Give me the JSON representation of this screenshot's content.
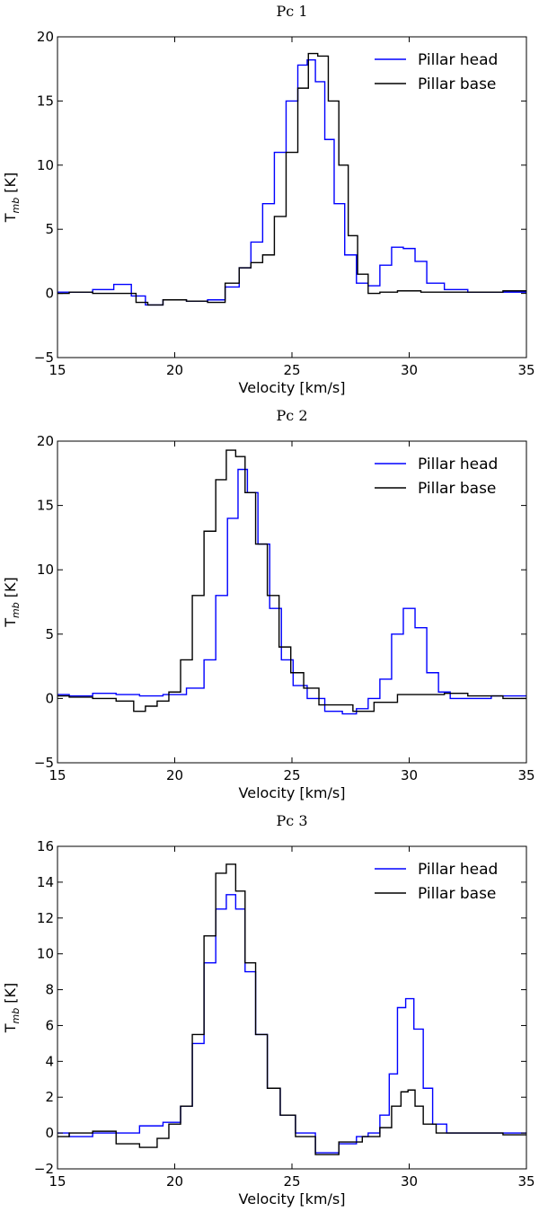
{
  "figure": {
    "background": "#ffffff",
    "colors": {
      "head": "#0000ff",
      "base": "#000000"
    }
  },
  "chart_data": [
    {
      "type": "line",
      "drawstyle": "steps",
      "title": "Pc 1",
      "xlabel": "Velocity [km/s]",
      "ylabel": "T",
      "ylabel_sub": "mb",
      "ylabel_unit": " [K]",
      "xlim": [
        15,
        35
      ],
      "ylim": [
        -5,
        20
      ],
      "xticks": [
        15,
        20,
        25,
        30,
        35
      ],
      "yticks": [
        -5,
        0,
        5,
        10,
        15,
        20
      ],
      "legend_position": "top-right",
      "series": [
        {
          "name": "Pillar head",
          "color": "#0000ff",
          "points": [
            [
              15,
              0.1
            ],
            [
              16,
              0.1
            ],
            [
              17,
              0.3
            ],
            [
              17.8,
              0.7
            ],
            [
              18.5,
              -0.2
            ],
            [
              19,
              -0.9
            ],
            [
              20,
              -0.5
            ],
            [
              21,
              -0.6
            ],
            [
              21.8,
              -0.5
            ],
            [
              22.5,
              0.5
            ],
            [
              23,
              2.0
            ],
            [
              23.5,
              4.0
            ],
            [
              24,
              7.0
            ],
            [
              24.5,
              11.0
            ],
            [
              25,
              15.0
            ],
            [
              25.5,
              17.8
            ],
            [
              25.8,
              18.2
            ],
            [
              26.2,
              16.5
            ],
            [
              26.6,
              12.0
            ],
            [
              27,
              7.0
            ],
            [
              27.5,
              3.0
            ],
            [
              28,
              0.8
            ],
            [
              28.5,
              0.6
            ],
            [
              29,
              2.2
            ],
            [
              29.5,
              3.6
            ],
            [
              30,
              3.5
            ],
            [
              30.5,
              2.5
            ],
            [
              31,
              0.8
            ],
            [
              32,
              0.3
            ],
            [
              33,
              0.1
            ],
            [
              35,
              0.1
            ]
          ]
        },
        {
          "name": "Pillar base",
          "color": "#000000",
          "points": [
            [
              15,
              0.0
            ],
            [
              16,
              0.1
            ],
            [
              17,
              0.0
            ],
            [
              18,
              0.0
            ],
            [
              18.7,
              -0.7
            ],
            [
              19,
              -0.9
            ],
            [
              20,
              -0.5
            ],
            [
              21,
              -0.6
            ],
            [
              21.8,
              -0.7
            ],
            [
              22.5,
              0.8
            ],
            [
              23,
              2.0
            ],
            [
              23.5,
              2.4
            ],
            [
              24,
              3.0
            ],
            [
              24.5,
              6.0
            ],
            [
              25,
              11.0
            ],
            [
              25.5,
              16.0
            ],
            [
              25.9,
              18.7
            ],
            [
              26.3,
              18.5
            ],
            [
              26.8,
              15.0
            ],
            [
              27.2,
              10.0
            ],
            [
              27.6,
              4.5
            ],
            [
              28,
              1.5
            ],
            [
              28.5,
              0.0
            ],
            [
              29,
              0.1
            ],
            [
              30,
              0.2
            ],
            [
              31,
              0.1
            ],
            [
              33,
              0.1
            ],
            [
              35,
              0.2
            ]
          ]
        }
      ]
    },
    {
      "type": "line",
      "drawstyle": "steps",
      "title": "Pc 2",
      "xlabel": "Velocity [km/s]",
      "ylabel": "T",
      "ylabel_sub": "mb",
      "ylabel_unit": " [K]",
      "xlim": [
        15,
        35
      ],
      "ylim": [
        -5,
        20
      ],
      "xticks": [
        15,
        20,
        25,
        30,
        35
      ],
      "yticks": [
        -5,
        0,
        5,
        10,
        15,
        20
      ],
      "legend_position": "top-right",
      "series": [
        {
          "name": "Pillar head",
          "color": "#0000ff",
          "points": [
            [
              15,
              0.3
            ],
            [
              16,
              0.2
            ],
            [
              17,
              0.4
            ],
            [
              18,
              0.3
            ],
            [
              19,
              0.2
            ],
            [
              20,
              0.3
            ],
            [
              21,
              0.8
            ],
            [
              21.5,
              3.0
            ],
            [
              22,
              8.0
            ],
            [
              22.5,
              14.0
            ],
            [
              22.9,
              17.8
            ],
            [
              23.3,
              16.0
            ],
            [
              23.8,
              12.0
            ],
            [
              24.3,
              7.0
            ],
            [
              24.8,
              3.0
            ],
            [
              25.3,
              1.0
            ],
            [
              26,
              0.0
            ],
            [
              26.8,
              -1.0
            ],
            [
              27.5,
              -1.2
            ],
            [
              28,
              -0.8
            ],
            [
              28.5,
              0.0
            ],
            [
              29,
              1.5
            ],
            [
              29.5,
              5.0
            ],
            [
              30,
              7.0
            ],
            [
              30.5,
              5.5
            ],
            [
              31,
              2.0
            ],
            [
              31.5,
              0.5
            ],
            [
              32,
              0.0
            ],
            [
              35,
              0.2
            ]
          ]
        },
        {
          "name": "Pillar base",
          "color": "#000000",
          "points": [
            [
              15,
              0.2
            ],
            [
              16,
              0.1
            ],
            [
              17,
              0.0
            ],
            [
              18,
              -0.2
            ],
            [
              18.5,
              -1.0
            ],
            [
              19,
              -0.6
            ],
            [
              19.5,
              -0.2
            ],
            [
              20,
              0.5
            ],
            [
              20.5,
              3.0
            ],
            [
              21,
              8.0
            ],
            [
              21.5,
              13.0
            ],
            [
              22,
              17.0
            ],
            [
              22.4,
              19.3
            ],
            [
              22.8,
              18.8
            ],
            [
              23.2,
              16.0
            ],
            [
              23.7,
              12.0
            ],
            [
              24.2,
              8.0
            ],
            [
              24.7,
              4.0
            ],
            [
              25.2,
              2.0
            ],
            [
              25.8,
              0.8
            ],
            [
              26.5,
              -0.5
            ],
            [
              27.2,
              -0.5
            ],
            [
              28,
              -1.0
            ],
            [
              29,
              -0.3
            ],
            [
              30,
              0.3
            ],
            [
              31,
              0.3
            ],
            [
              32,
              0.4
            ],
            [
              33,
              0.2
            ],
            [
              35,
              0.0
            ]
          ]
        }
      ]
    },
    {
      "type": "line",
      "drawstyle": "steps",
      "title": "Pc 3",
      "xlabel": "Velocity [km/s]",
      "ylabel": "T",
      "ylabel_sub": "mb",
      "ylabel_unit": " [K]",
      "xlim": [
        15,
        35
      ],
      "ylim": [
        -2,
        16
      ],
      "xticks": [
        15,
        20,
        25,
        30,
        35
      ],
      "yticks": [
        -2,
        0,
        2,
        4,
        6,
        8,
        10,
        12,
        14,
        16
      ],
      "legend_position": "top-right",
      "series": [
        {
          "name": "Pillar head",
          "color": "#0000ff",
          "points": [
            [
              15,
              0.0
            ],
            [
              16,
              -0.2
            ],
            [
              17,
              0.0
            ],
            [
              18,
              0.0
            ],
            [
              19,
              0.4
            ],
            [
              20,
              0.6
            ],
            [
              20.5,
              1.5
            ],
            [
              21,
              5.0
            ],
            [
              21.5,
              9.5
            ],
            [
              22,
              12.5
            ],
            [
              22.4,
              13.3
            ],
            [
              22.8,
              12.5
            ],
            [
              23.2,
              9.0
            ],
            [
              23.7,
              5.5
            ],
            [
              24.2,
              2.5
            ],
            [
              24.8,
              1.0
            ],
            [
              25.5,
              0.0
            ],
            [
              26.5,
              -1.1
            ],
            [
              27.5,
              -0.6
            ],
            [
              28,
              -0.2
            ],
            [
              28.5,
              0.0
            ],
            [
              29,
              1.0
            ],
            [
              29.3,
              3.3
            ],
            [
              29.7,
              7.0
            ],
            [
              30,
              7.5
            ],
            [
              30.4,
              5.8
            ],
            [
              30.8,
              2.5
            ],
            [
              31.2,
              0.5
            ],
            [
              32,
              0.0
            ],
            [
              33,
              0.0
            ],
            [
              35,
              0.0
            ]
          ]
        },
        {
          "name": "Pillar base",
          "color": "#000000",
          "points": [
            [
              15,
              -0.2
            ],
            [
              16,
              0.0
            ],
            [
              17,
              0.1
            ],
            [
              18,
              -0.6
            ],
            [
              19,
              -0.8
            ],
            [
              19.5,
              -0.3
            ],
            [
              20,
              0.5
            ],
            [
              20.5,
              1.5
            ],
            [
              21,
              5.5
            ],
            [
              21.5,
              11.0
            ],
            [
              22,
              14.5
            ],
            [
              22.4,
              15.0
            ],
            [
              22.8,
              13.5
            ],
            [
              23.2,
              9.5
            ],
            [
              23.7,
              5.5
            ],
            [
              24.2,
              2.5
            ],
            [
              24.8,
              1.0
            ],
            [
              25.5,
              -0.2
            ],
            [
              26.5,
              -1.2
            ],
            [
              27.5,
              -0.5
            ],
            [
              28.5,
              -0.2
            ],
            [
              29,
              0.3
            ],
            [
              29.5,
              1.5
            ],
            [
              29.8,
              2.3
            ],
            [
              30.1,
              2.4
            ],
            [
              30.4,
              1.5
            ],
            [
              30.8,
              0.5
            ],
            [
              31.5,
              0.0
            ],
            [
              33,
              0.0
            ],
            [
              35,
              -0.1
            ]
          ]
        }
      ]
    }
  ]
}
